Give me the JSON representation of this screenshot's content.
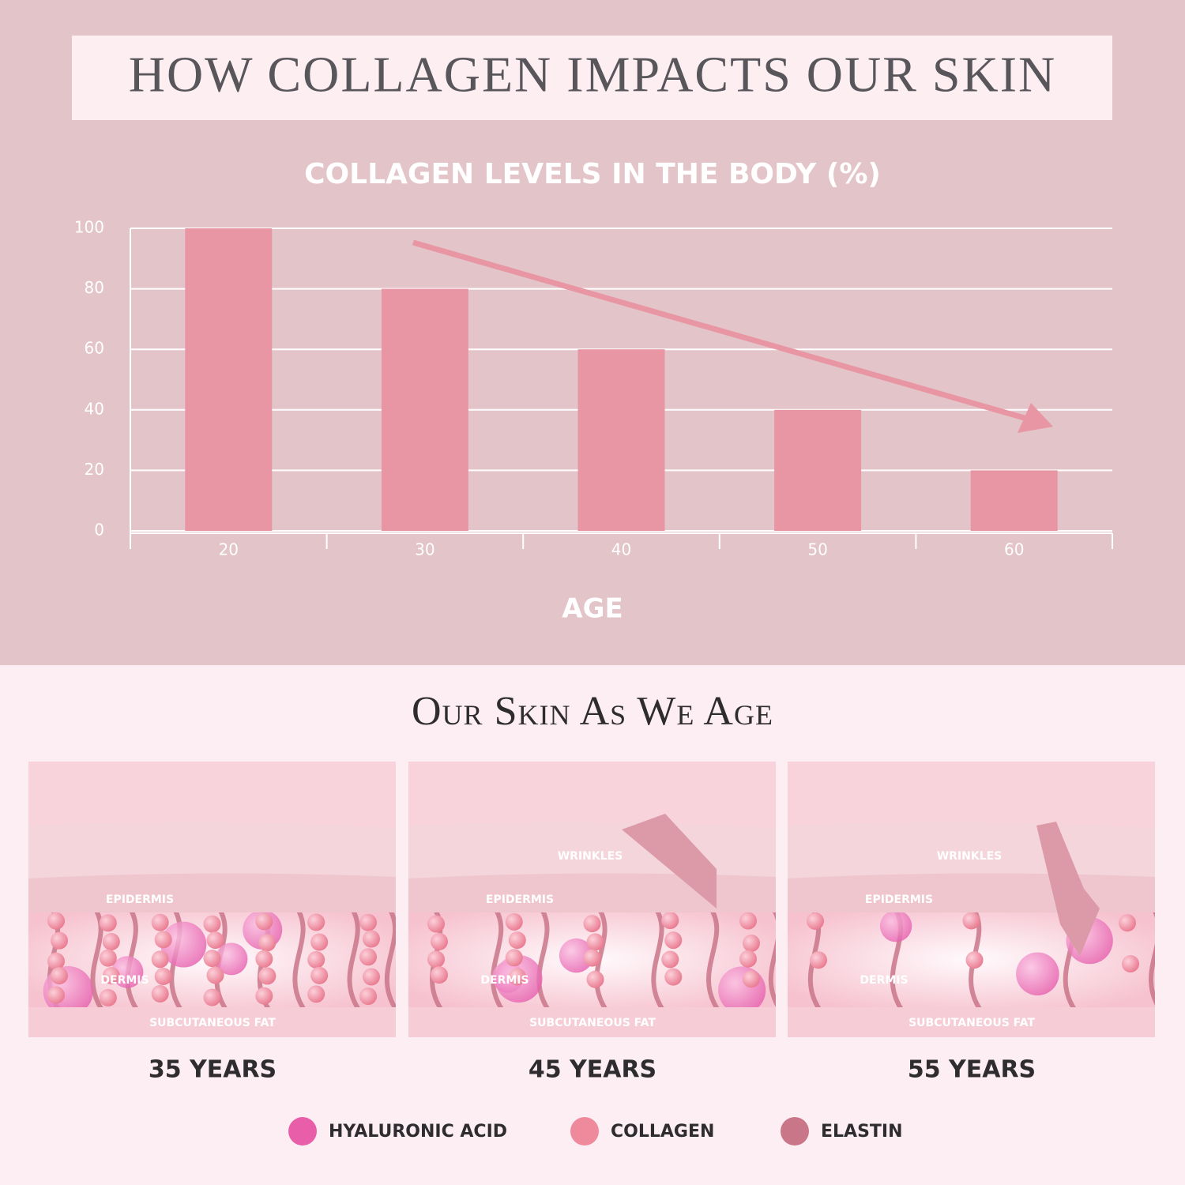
{
  "header": {
    "title": "HOW COLLAGEN IMPACTS OUR SKIN"
  },
  "chart_data": {
    "type": "bar",
    "title": "COLLAGEN LEVELS IN THE BODY (%)",
    "x_label": "AGE",
    "categories": [
      "20",
      "30",
      "40",
      "50",
      "60"
    ],
    "values": [
      100,
      80,
      60,
      40,
      20
    ],
    "color": "#e896a4",
    "ylim": [
      0,
      100
    ],
    "yticks": [
      0,
      20,
      40,
      60,
      80,
      100
    ],
    "grid": true
  },
  "section": {
    "title": "Our Skin As We Age",
    "panels": [
      {
        "epidermis": "EPIDERMIS",
        "dermis": "DERMIS",
        "fat": "SUBCUTANEOUS FAT",
        "caption": "35 YEARS"
      },
      {
        "wrinkles": "WRINKLES",
        "epidermis": "EPIDERMIS",
        "dermis": "DERMIS",
        "fat": "SUBCUTANEOUS FAT",
        "caption": "45 YEARS"
      },
      {
        "wrinkles": "WRINKLES",
        "epidermis": "EPIDERMIS",
        "dermis": "DERMIS",
        "fat": "SUBCUTANEOUS FAT",
        "caption": "55 YEARS"
      }
    ]
  },
  "legend": [
    {
      "name": "HYALURONIC ACID",
      "color": "#e95ea8"
    },
    {
      "name": "COLLAGEN",
      "color": "#ee8a9c"
    },
    {
      "name": "ELASTIN",
      "color": "#c97688"
    }
  ]
}
